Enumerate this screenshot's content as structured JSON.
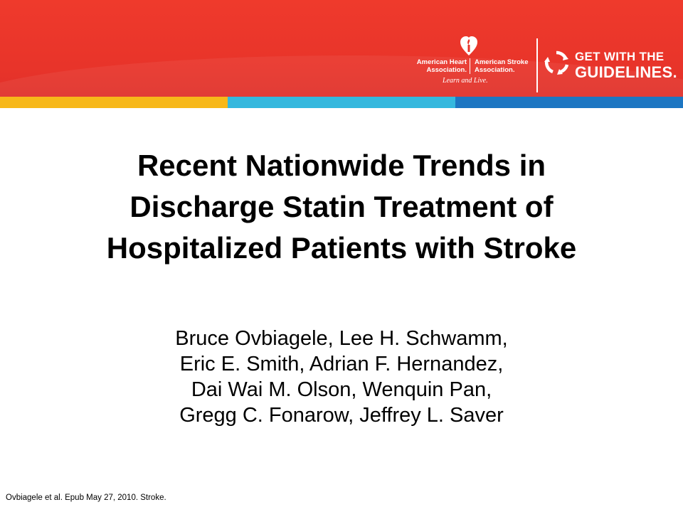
{
  "header": {
    "aha_left": [
      "American Heart",
      "Association."
    ],
    "aha_right": [
      "American Stroke",
      "Association."
    ],
    "tagline": "Learn and Live.",
    "gwtg_line1": "GET WITH THE",
    "gwtg_line2": "GUIDELINES.",
    "colors": {
      "banner": "#e8342a",
      "stripe_yellow": "#f7b819",
      "stripe_cyan": "#35b8de",
      "stripe_blue": "#1d76c2"
    },
    "icons": [
      "torch-heart-icon",
      "circular-arrows-icon"
    ]
  },
  "slide": {
    "title_lines": [
      "Recent Nationwide Trends in",
      "Discharge Statin Treatment of",
      "Hospitalized Patients with Stroke"
    ],
    "author_lines": [
      "Bruce Ovbiagele, Lee H. Schwamm,",
      "Eric E. Smith, Adrian F. Hernandez,",
      "Dai Wai M. Olson, Wenquin Pan,",
      "Gregg C. Fonarow, Jeffrey L. Saver"
    ],
    "citation": "Ovbiagele et al. Epub May 27, 2010. Stroke."
  }
}
